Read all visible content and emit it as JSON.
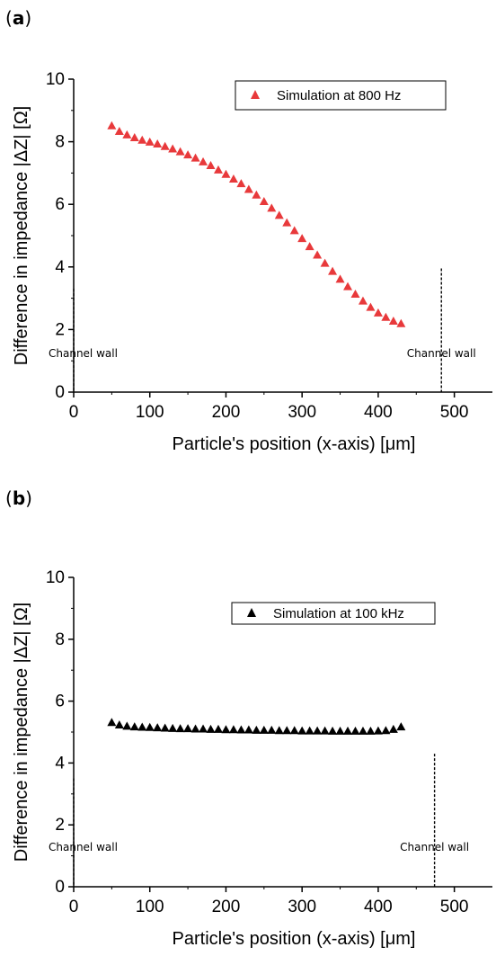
{
  "chart_data": [
    {
      "panel_label": "a",
      "type": "scatter",
      "title": "",
      "xlabel": "Particle's position (x-axis) [μm]",
      "ylabel": "Difference in impedance  |ΔZ| [Ω]",
      "xlim": [
        0,
        550
      ],
      "ylim": [
        0,
        10
      ],
      "xticks": [
        0,
        100,
        200,
        300,
        400,
        500
      ],
      "yticks": [
        0,
        2,
        4,
        6,
        8,
        10
      ],
      "grid": false,
      "legend_position": "top-right",
      "series": [
        {
          "name": "Simulation at 800 Hz",
          "color": "#e8393b",
          "marker": "triangle",
          "x": [
            50,
            60,
            70,
            80,
            90,
            100,
            110,
            120,
            130,
            140,
            150,
            160,
            170,
            180,
            190,
            200,
            210,
            220,
            230,
            240,
            250,
            260,
            270,
            280,
            290,
            300,
            310,
            320,
            330,
            340,
            350,
            360,
            370,
            380,
            390,
            400,
            410,
            420,
            430
          ],
          "y": [
            8.5,
            8.32,
            8.21,
            8.12,
            8.04,
            7.98,
            7.92,
            7.84,
            7.76,
            7.67,
            7.57,
            7.47,
            7.35,
            7.23,
            7.09,
            6.95,
            6.8,
            6.65,
            6.47,
            6.29,
            6.08,
            5.87,
            5.64,
            5.4,
            5.15,
            4.9,
            4.64,
            4.37,
            4.11,
            3.85,
            3.6,
            3.36,
            3.12,
            2.9,
            2.7,
            2.52,
            2.38,
            2.26,
            2.18
          ]
        }
      ],
      "annotations": [
        {
          "text": "Channel wall",
          "x": 0,
          "label_x": 0
        },
        {
          "text": "Channel wall",
          "x": 483,
          "label_x": 483
        }
      ]
    },
    {
      "panel_label": "b",
      "type": "scatter",
      "title": "",
      "xlabel": "Particle's position (x-axis) [μm]",
      "ylabel": "Difference in impedance  |ΔZ| [Ω]",
      "xlim": [
        0,
        550
      ],
      "ylim": [
        0,
        10
      ],
      "xticks": [
        0,
        100,
        200,
        300,
        400,
        500
      ],
      "yticks": [
        0,
        2,
        4,
        6,
        8,
        10
      ],
      "grid": false,
      "legend_position": "top-right",
      "series": [
        {
          "name": "Simulation at 100 kHz",
          "color": "#000000",
          "marker": "triangle",
          "x": [
            50,
            60,
            70,
            80,
            90,
            100,
            110,
            120,
            130,
            140,
            150,
            160,
            170,
            180,
            190,
            200,
            210,
            220,
            230,
            240,
            250,
            260,
            270,
            280,
            290,
            300,
            310,
            320,
            330,
            340,
            350,
            360,
            370,
            380,
            390,
            400,
            410,
            420,
            430
          ],
          "y": [
            5.3,
            5.22,
            5.18,
            5.16,
            5.15,
            5.14,
            5.13,
            5.12,
            5.11,
            5.1,
            5.1,
            5.09,
            5.09,
            5.08,
            5.08,
            5.07,
            5.07,
            5.06,
            5.06,
            5.05,
            5.05,
            5.05,
            5.04,
            5.04,
            5.04,
            5.03,
            5.03,
            5.03,
            5.03,
            5.02,
            5.02,
            5.02,
            5.02,
            5.02,
            5.02,
            5.03,
            5.04,
            5.08,
            5.16
          ]
        }
      ],
      "annotations": [
        {
          "text": "Channel wall",
          "x": 0,
          "label_x": 0
        },
        {
          "text": "Channel wall",
          "x": 474,
          "label_x": 474
        }
      ]
    }
  ]
}
